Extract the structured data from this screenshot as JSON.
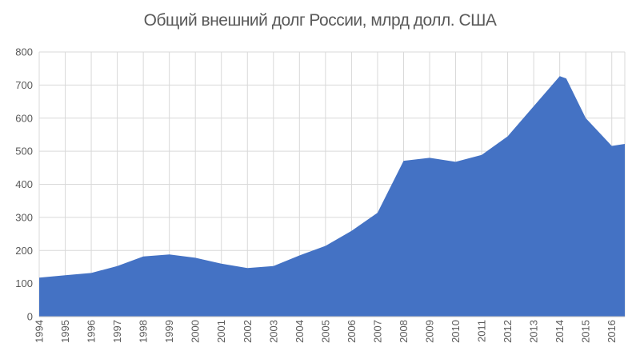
{
  "chart_data": {
    "type": "area",
    "title": "Общий внешний долг России, млрд долл. США",
    "xlabel": "",
    "ylabel": "",
    "ylim": [
      0,
      800
    ],
    "yticks": [
      0,
      100,
      200,
      300,
      400,
      500,
      600,
      700,
      800
    ],
    "grid": true,
    "legend": "none",
    "color": "#4472C4",
    "categories": [
      "1994",
      "1995",
      "1996",
      "1997",
      "1998",
      "1999",
      "2000",
      "2001",
      "2002",
      "2003",
      "2004",
      "2005",
      "2006",
      "2007",
      "2008",
      "2009",
      "2010",
      "2011",
      "2012",
      "2013",
      "2014",
      "2015",
      "2016"
    ],
    "points": [
      {
        "x": 1994.0,
        "y": 118
      },
      {
        "x": 1995.0,
        "y": 125
      },
      {
        "x": 1996.0,
        "y": 132
      },
      {
        "x": 1997.0,
        "y": 153
      },
      {
        "x": 1998.0,
        "y": 182
      },
      {
        "x": 1999.0,
        "y": 188
      },
      {
        "x": 2000.0,
        "y": 178
      },
      {
        "x": 2001.0,
        "y": 160
      },
      {
        "x": 2002.0,
        "y": 147
      },
      {
        "x": 2003.0,
        "y": 153
      },
      {
        "x": 2004.0,
        "y": 185
      },
      {
        "x": 2005.0,
        "y": 214
      },
      {
        "x": 2006.0,
        "y": 259
      },
      {
        "x": 2007.0,
        "y": 314
      },
      {
        "x": 2008.0,
        "y": 471
      },
      {
        "x": 2009.0,
        "y": 480
      },
      {
        "x": 2010.0,
        "y": 468
      },
      {
        "x": 2011.0,
        "y": 489
      },
      {
        "x": 2012.0,
        "y": 545
      },
      {
        "x": 2013.0,
        "y": 636
      },
      {
        "x": 2014.0,
        "y": 727
      },
      {
        "x": 2014.25,
        "y": 720
      },
      {
        "x": 2015.0,
        "y": 600
      },
      {
        "x": 2016.0,
        "y": 516
      },
      {
        "x": 2016.5,
        "y": 522
      }
    ]
  }
}
